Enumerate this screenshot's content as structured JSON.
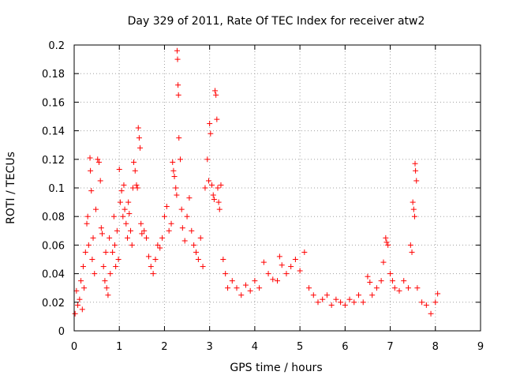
{
  "chart_data": {
    "type": "scatter",
    "title": "Day 329 of 2011, Rate Of TEC Index for receiver atw2",
    "xlabel": "GPS time / hours",
    "ylabel": "ROTI / TECUs",
    "xlim": [
      0,
      9
    ],
    "ylim": [
      0,
      0.2
    ],
    "xticks": [
      "0",
      "1",
      "2",
      "3",
      "4",
      "5",
      "6",
      "7",
      "8",
      "9"
    ],
    "yticks": [
      "0",
      "0.02",
      "0.04",
      "0.06",
      "0.08",
      "0.1",
      "0.12",
      "0.14",
      "0.16",
      "0.18",
      "0.2"
    ],
    "grid": true,
    "marker": "+",
    "series": [
      {
        "name": "ROTI",
        "color": "#ff0000",
        "points": [
          [
            0.02,
            0.012
          ],
          [
            0.05,
            0.028
          ],
          [
            0.08,
            0.018
          ],
          [
            0.12,
            0.022
          ],
          [
            0.15,
            0.035
          ],
          [
            0.18,
            0.015
          ],
          [
            0.2,
            0.045
          ],
          [
            0.22,
            0.03
          ],
          [
            0.25,
            0.055
          ],
          [
            0.28,
            0.075
          ],
          [
            0.3,
            0.08
          ],
          [
            0.32,
            0.06
          ],
          [
            0.35,
            0.121
          ],
          [
            0.36,
            0.112
          ],
          [
            0.38,
            0.098
          ],
          [
            0.4,
            0.05
          ],
          [
            0.42,
            0.065
          ],
          [
            0.45,
            0.04
          ],
          [
            0.48,
            0.085
          ],
          [
            0.52,
            0.12
          ],
          [
            0.55,
            0.118
          ],
          [
            0.58,
            0.105
          ],
          [
            0.6,
            0.072
          ],
          [
            0.62,
            0.068
          ],
          [
            0.65,
            0.045
          ],
          [
            0.68,
            0.035
          ],
          [
            0.7,
            0.055
          ],
          [
            0.72,
            0.03
          ],
          [
            0.75,
            0.025
          ],
          [
            0.78,
            0.065
          ],
          [
            0.8,
            0.04
          ],
          [
            0.85,
            0.055
          ],
          [
            0.88,
            0.08
          ],
          [
            0.9,
            0.06
          ],
          [
            0.92,
            0.045
          ],
          [
            0.95,
            0.07
          ],
          [
            0.98,
            0.05
          ],
          [
            1.0,
            0.113
          ],
          [
            1.02,
            0.09
          ],
          [
            1.05,
            0.098
          ],
          [
            1.08,
            0.08
          ],
          [
            1.1,
            0.102
          ],
          [
            1.12,
            0.085
          ],
          [
            1.15,
            0.075
          ],
          [
            1.18,
            0.065
          ],
          [
            1.2,
            0.09
          ],
          [
            1.22,
            0.082
          ],
          [
            1.25,
            0.07
          ],
          [
            1.28,
            0.06
          ],
          [
            1.3,
            0.1
          ],
          [
            1.32,
            0.118
          ],
          [
            1.35,
            0.112
          ],
          [
            1.38,
            0.102
          ],
          [
            1.4,
            0.1
          ],
          [
            1.42,
            0.142
          ],
          [
            1.44,
            0.135
          ],
          [
            1.46,
            0.128
          ],
          [
            1.48,
            0.075
          ],
          [
            1.5,
            0.068
          ],
          [
            1.55,
            0.07
          ],
          [
            1.6,
            0.065
          ],
          [
            1.65,
            0.052
          ],
          [
            1.7,
            0.045
          ],
          [
            1.75,
            0.04
          ],
          [
            1.8,
            0.05
          ],
          [
            1.85,
            0.06
          ],
          [
            1.9,
            0.058
          ],
          [
            1.95,
            0.065
          ],
          [
            2.0,
            0.08
          ],
          [
            2.05,
            0.087
          ],
          [
            2.1,
            0.07
          ],
          [
            2.15,
            0.075
          ],
          [
            2.18,
            0.118
          ],
          [
            2.2,
            0.112
          ],
          [
            2.22,
            0.108
          ],
          [
            2.25,
            0.1
          ],
          [
            2.27,
            0.095
          ],
          [
            2.28,
            0.196
          ],
          [
            2.29,
            0.19
          ],
          [
            2.3,
            0.172
          ],
          [
            2.31,
            0.165
          ],
          [
            2.32,
            0.135
          ],
          [
            2.35,
            0.12
          ],
          [
            2.38,
            0.085
          ],
          [
            2.4,
            0.072
          ],
          [
            2.45,
            0.063
          ],
          [
            2.5,
            0.08
          ],
          [
            2.55,
            0.093
          ],
          [
            2.6,
            0.07
          ],
          [
            2.65,
            0.06
          ],
          [
            2.7,
            0.055
          ],
          [
            2.75,
            0.05
          ],
          [
            2.8,
            0.065
          ],
          [
            2.85,
            0.045
          ],
          [
            2.9,
            0.1
          ],
          [
            2.95,
            0.12
          ],
          [
            2.98,
            0.105
          ],
          [
            3.0,
            0.145
          ],
          [
            3.02,
            0.138
          ],
          [
            3.05,
            0.102
          ],
          [
            3.08,
            0.095
          ],
          [
            3.1,
            0.092
          ],
          [
            3.12,
            0.168
          ],
          [
            3.14,
            0.165
          ],
          [
            3.16,
            0.148
          ],
          [
            3.18,
            0.1
          ],
          [
            3.2,
            0.09
          ],
          [
            3.22,
            0.085
          ],
          [
            3.25,
            0.102
          ],
          [
            3.3,
            0.05
          ],
          [
            3.35,
            0.04
          ],
          [
            3.4,
            0.03
          ],
          [
            3.5,
            0.035
          ],
          [
            3.6,
            0.03
          ],
          [
            3.7,
            0.025
          ],
          [
            3.8,
            0.032
          ],
          [
            3.9,
            0.028
          ],
          [
            4.0,
            0.035
          ],
          [
            4.1,
            0.03
          ],
          [
            4.2,
            0.048
          ],
          [
            4.3,
            0.04
          ],
          [
            4.4,
            0.036
          ],
          [
            4.5,
            0.035
          ],
          [
            4.55,
            0.052
          ],
          [
            4.6,
            0.046
          ],
          [
            4.7,
            0.04
          ],
          [
            4.8,
            0.045
          ],
          [
            4.9,
            0.05
          ],
          [
            5.0,
            0.042
          ],
          [
            5.1,
            0.055
          ],
          [
            5.2,
            0.03
          ],
          [
            5.3,
            0.025
          ],
          [
            5.4,
            0.02
          ],
          [
            5.5,
            0.022
          ],
          [
            5.6,
            0.025
          ],
          [
            5.7,
            0.018
          ],
          [
            5.8,
            0.022
          ],
          [
            5.9,
            0.02
          ],
          [
            6.0,
            0.018
          ],
          [
            6.1,
            0.022
          ],
          [
            6.2,
            0.02
          ],
          [
            6.3,
            0.025
          ],
          [
            6.4,
            0.02
          ],
          [
            6.5,
            0.038
          ],
          [
            6.55,
            0.034
          ],
          [
            6.6,
            0.025
          ],
          [
            6.7,
            0.03
          ],
          [
            6.8,
            0.035
          ],
          [
            6.85,
            0.048
          ],
          [
            6.9,
            0.065
          ],
          [
            6.92,
            0.062
          ],
          [
            6.95,
            0.06
          ],
          [
            7.0,
            0.04
          ],
          [
            7.05,
            0.035
          ],
          [
            7.1,
            0.03
          ],
          [
            7.2,
            0.028
          ],
          [
            7.3,
            0.035
          ],
          [
            7.4,
            0.03
          ],
          [
            7.45,
            0.06
          ],
          [
            7.48,
            0.055
          ],
          [
            7.5,
            0.09
          ],
          [
            7.52,
            0.085
          ],
          [
            7.54,
            0.08
          ],
          [
            7.55,
            0.117
          ],
          [
            7.56,
            0.112
          ],
          [
            7.58,
            0.105
          ],
          [
            7.6,
            0.03
          ],
          [
            7.7,
            0.02
          ],
          [
            7.8,
            0.018
          ],
          [
            7.9,
            0.012
          ],
          [
            8.0,
            0.02
          ],
          [
            8.05,
            0.026
          ]
        ]
      }
    ]
  }
}
